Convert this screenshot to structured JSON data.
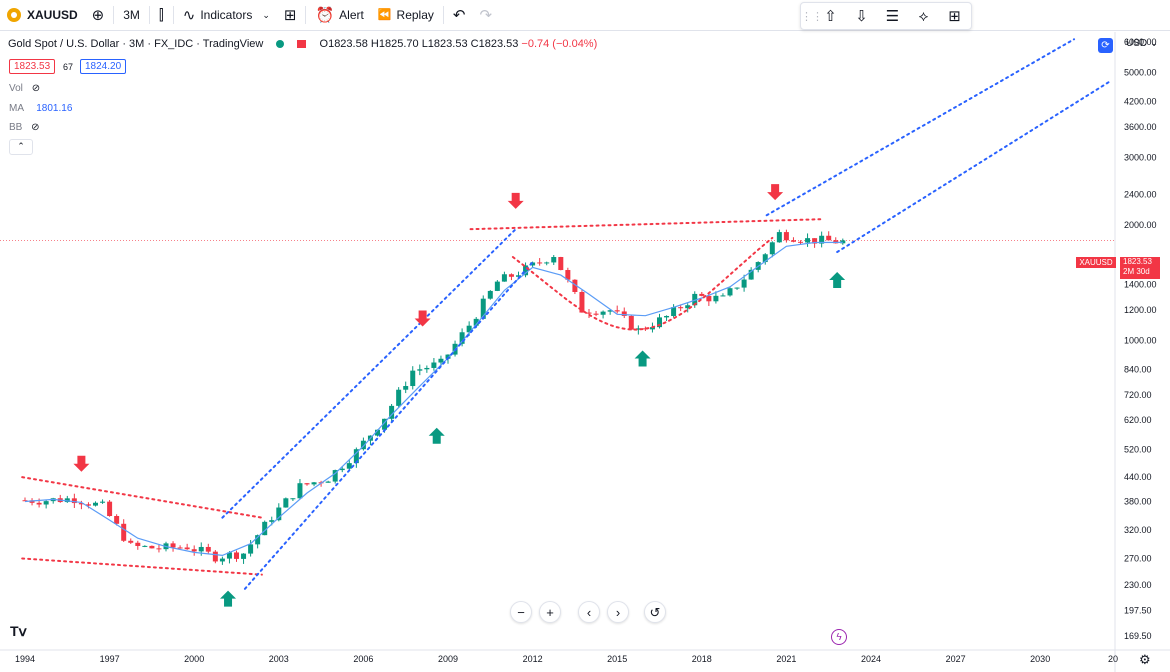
{
  "toolbar": {
    "symbol": "XAUUSD",
    "interval": "3M",
    "indicators": "Indicators",
    "alert": "Alert",
    "replay": "Replay"
  },
  "legend": {
    "title": "Gold Spot / U.S. Dollar · 3M · FX_IDC · TradingView",
    "open": "O1823.58",
    "high": "H1825.70",
    "low": "L1823.53",
    "close": "C1823.53",
    "change": "−0.74 (−0.04%)",
    "bid": "1823.53",
    "spread": "67",
    "ask": "1824.20"
  },
  "indicators": {
    "vol_label": "Vol",
    "ma_label": "MA",
    "ma_value": "1801.16",
    "bb_label": "BB"
  },
  "price_scale": {
    "currency": "USD",
    "ticks": [
      "6000.00",
      "5000.00",
      "4200.00",
      "3600.00",
      "3000.00",
      "2400.00",
      "2000.00",
      "1400.00",
      "1200.00",
      "1000.00",
      "840.00",
      "720.00",
      "620.00",
      "520.00",
      "440.00",
      "380.00",
      "320.00",
      "270.00",
      "230.00",
      "197.50",
      "169.50"
    ],
    "last_label": "XAUUSD",
    "last_price": "1823.53",
    "countdown": "2M 30d"
  },
  "time_scale": {
    "ticks": [
      "1994",
      "1997",
      "2000",
      "2003",
      "2006",
      "2009",
      "2012",
      "2015",
      "2018",
      "2021",
      "2024",
      "2027",
      "2030",
      "20"
    ]
  },
  "chart_data": {
    "type": "candlestick",
    "title": "Gold Spot / U.S. Dollar · 3M · FX_IDC · TradingView",
    "x": [
      1994,
      1995,
      1996,
      1997,
      1998,
      1999,
      2000,
      2001,
      2002,
      2003,
      2004,
      2005,
      2006,
      2007,
      2008,
      2009,
      2010,
      2011,
      2012,
      2013,
      2014,
      2015,
      2016,
      2017,
      2018,
      2019,
      2020,
      2021,
      2022,
      2023
    ],
    "close": [
      383,
      387,
      369,
      290,
      287,
      290,
      273,
      279,
      347,
      416,
      438,
      513,
      632,
      834,
      870,
      1096,
      1421,
      1531,
      1675,
      1202,
      1199,
      1061,
      1152,
      1303,
      1282,
      1517,
      1898,
      1829,
      1812,
      1823
    ],
    "ma": [
      380,
      385,
      378,
      340,
      305,
      290,
      280,
      275,
      295,
      345,
      400,
      450,
      530,
      640,
      760,
      900,
      1100,
      1350,
      1550,
      1480,
      1320,
      1170,
      1160,
      1220,
      1290,
      1380,
      1560,
      1760,
      1800,
      1801
    ],
    "ylim": [
      169.5,
      6000
    ],
    "log_scale": true,
    "annotations": [
      "sell arrows at 1996, 2008, 2011, 2020",
      "buy arrows at 2001, 2008, 2015, 2022",
      "ascending channel 2001–2011",
      "rounded bottom 2011–2020",
      "projected ascending channel 2020–2030"
    ]
  }
}
